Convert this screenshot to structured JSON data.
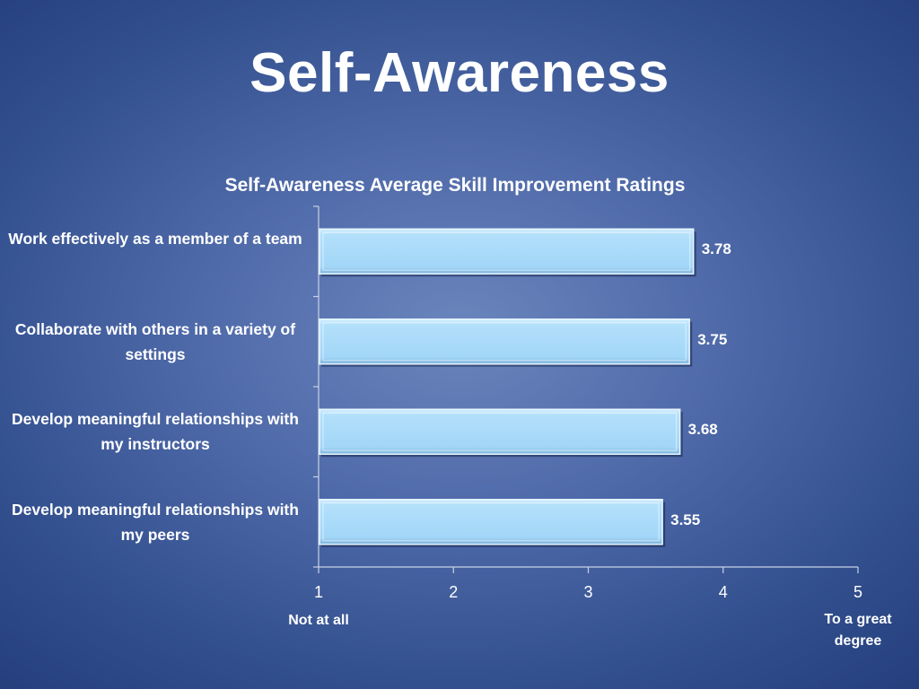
{
  "slide": {
    "title": "Self-Awareness"
  },
  "chart_data": {
    "type": "bar",
    "orientation": "horizontal",
    "title": "Self-Awareness Average Skill Improvement Ratings",
    "categories": [
      "Work effectively as a member of a team",
      "Collaborate with others in a variety of settings",
      "Develop meaningful relationships with my instructors",
      "Develop meaningful relationships with my peers"
    ],
    "values": [
      3.78,
      3.75,
      3.68,
      3.55
    ],
    "value_labels": [
      "3.78",
      "3.75",
      "3.68",
      "3.55"
    ],
    "xlim": [
      1,
      5
    ],
    "x_ticks": [
      "1",
      "2",
      "3",
      "4",
      "5"
    ],
    "x_anchor_labels": {
      "low": "Not at all",
      "high": "To a great degree"
    },
    "grid": false,
    "legend": "none",
    "bar_color": "#a8d8f8"
  }
}
